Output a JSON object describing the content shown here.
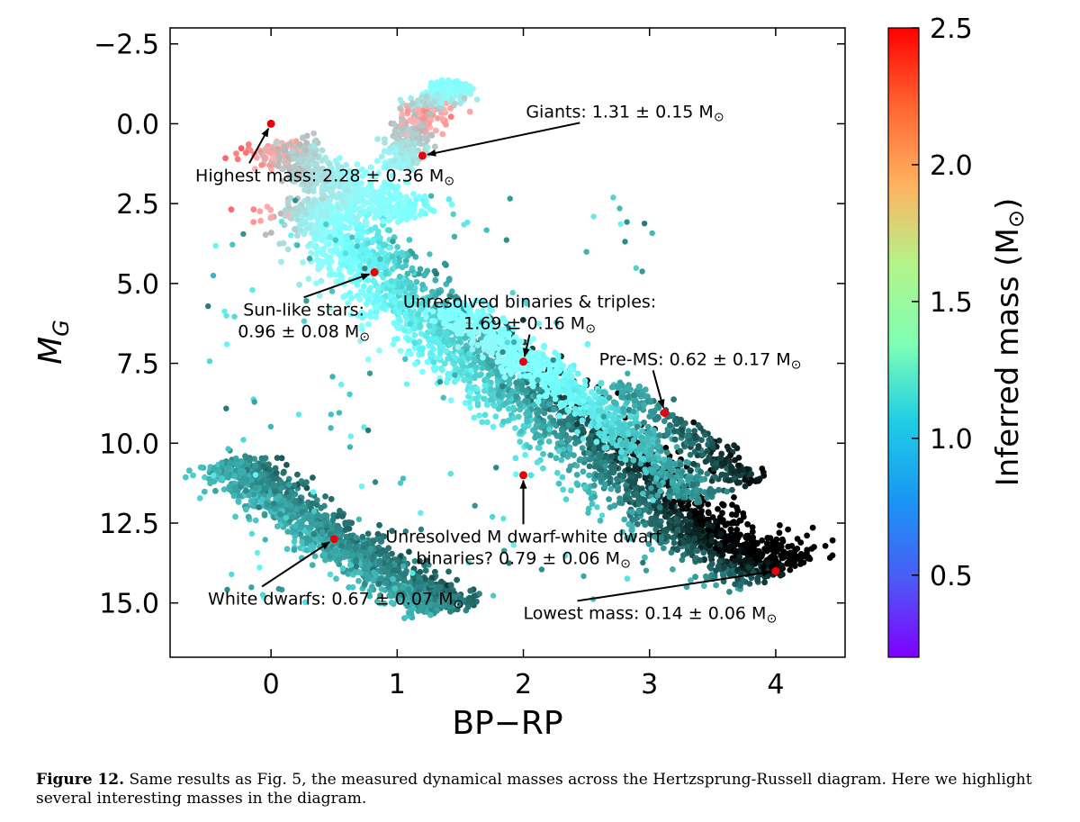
{
  "chart_data": {
    "type": "scatter",
    "xlabel": "BP−RP",
    "ylabel": "M",
    "ylabel_sub": "G",
    "xlim": [
      -0.8,
      4.55
    ],
    "ylim": [
      16.7,
      -3.0
    ],
    "y_inverted": true,
    "xticks": [
      0,
      1,
      2,
      3,
      4
    ],
    "xtick_labels": [
      "0",
      "1",
      "2",
      "3",
      "4"
    ],
    "yticks": [
      -2.5,
      0.0,
      2.5,
      5.0,
      7.5,
      10.0,
      12.5,
      15.0
    ],
    "ytick_labels": [
      "−2.5",
      "0.0",
      "2.5",
      "5.0",
      "7.5",
      "10.0",
      "12.5",
      "15.0"
    ],
    "colorbar": {
      "label": "Inferred mass (M",
      "label_symbol": "⊙",
      "label_close": ")",
      "colormap": "rainbow",
      "range": [
        0.2,
        2.5
      ],
      "ticks": [
        0.5,
        1.0,
        1.5,
        2.0,
        2.5
      ],
      "tick_labels": [
        "0.5",
        "1.0",
        "1.5",
        "2.0",
        "2.5"
      ]
    },
    "highlighted_points": [
      {
        "bp_rp": 0.0,
        "mg": 0.0,
        "mass": 2.28,
        "err": 0.36,
        "label": "Highest mass: 2.28 ± 0.36 M",
        "text_pos": [
          -0.6,
          1.8
        ]
      },
      {
        "bp_rp": 1.2,
        "mg": 1.0,
        "mass": 1.31,
        "err": 0.15,
        "label": "Giants: 1.31 ± 0.15 M",
        "text_pos": [
          2.02,
          -0.2
        ]
      },
      {
        "bp_rp": 0.82,
        "mg": 4.65,
        "mass": 0.96,
        "err": 0.08,
        "label_lines": [
          "Sun-like stars:",
          "0.96 ± 0.08 M"
        ],
        "text_pos": [
          0.26,
          6.0
        ]
      },
      {
        "bp_rp": 2.0,
        "mg": 7.45,
        "mass": 1.69,
        "err": 0.16,
        "label_lines": [
          "Unresolved binaries & triples:",
          "1.69 ± 0.16 M"
        ],
        "text_pos": [
          2.05,
          5.75
        ]
      },
      {
        "bp_rp": 3.12,
        "mg": 9.05,
        "mass": 0.62,
        "err": 0.17,
        "label": "Pre-MS: 0.62 ± 0.17 M",
        "text_pos": [
          2.6,
          7.55
        ]
      },
      {
        "bp_rp": 2.0,
        "mg": 11.0,
        "mass": 0.79,
        "err": 0.06,
        "label_lines": [
          "Unresolved M dwarf-white dwarf",
          "binaries? 0.79 ± 0.06 M"
        ],
        "text_pos": [
          2.0,
          13.1
        ]
      },
      {
        "bp_rp": 0.5,
        "mg": 13.0,
        "mass": 0.67,
        "err": 0.07,
        "label": "White dwarfs: 0.67 ± 0.07 M",
        "text_pos": [
          -0.5,
          15.05
        ]
      },
      {
        "bp_rp": 4.0,
        "mg": 14.0,
        "mass": 0.14,
        "err": 0.06,
        "label": "Lowest mass: 0.14 ± 0.06 M",
        "text_pos": [
          2.0,
          15.5
        ]
      }
    ],
    "populations": [
      {
        "name": "main sequence",
        "path": [
          [
            0.3,
            2.4,
            1.7
          ],
          [
            0.6,
            3.7,
            1.25
          ],
          [
            0.9,
            5.0,
            1.05
          ],
          [
            1.3,
            6.3,
            0.95
          ],
          [
            1.7,
            7.5,
            0.8
          ],
          [
            2.1,
            8.7,
            0.65
          ],
          [
            2.5,
            10.0,
            0.55
          ],
          [
            2.9,
            11.3,
            0.45
          ],
          [
            3.3,
            12.6,
            0.33
          ],
          [
            3.7,
            13.5,
            0.22
          ],
          [
            4.1,
            14.0,
            0.2
          ]
        ],
        "width_x": 0.42,
        "count": 2800
      },
      {
        "name": "binary sequence",
        "path": [
          [
            1.4,
            5.7,
            1.3
          ],
          [
            1.8,
            6.8,
            1.45
          ],
          [
            2.2,
            7.9,
            1.3
          ],
          [
            2.6,
            9.1,
            1.0
          ],
          [
            3.0,
            10.3,
            0.8
          ],
          [
            3.4,
            11.7,
            0.6
          ]
        ],
        "width_x": 0.22,
        "count": 900
      },
      {
        "name": "turnoff and subgiants",
        "path": [
          [
            0.0,
            0.6,
            2.0
          ],
          [
            0.25,
            1.3,
            1.8
          ],
          [
            0.55,
            1.8,
            1.6
          ],
          [
            0.85,
            2.3,
            1.45
          ],
          [
            1.1,
            2.9,
            1.35
          ]
        ],
        "width_x": 0.28,
        "count": 600
      },
      {
        "name": "giant branch",
        "path": [
          [
            1.0,
            1.3,
            1.55
          ],
          [
            1.1,
            0.5,
            1.8
          ],
          [
            1.2,
            -0.3,
            2.0
          ],
          [
            1.35,
            -0.9,
            1.55
          ],
          [
            1.5,
            -1.2,
            1.4
          ]
        ],
        "width_x": 0.18,
        "count": 450
      },
      {
        "name": "white dwarfs",
        "path": [
          [
            -0.35,
            10.6,
            0.7
          ],
          [
            0.0,
            11.6,
            0.67
          ],
          [
            0.5,
            13.0,
            0.66
          ],
          [
            1.0,
            14.3,
            0.64
          ],
          [
            1.4,
            15.2,
            0.63
          ]
        ],
        "width_x": 0.28,
        "count": 1400
      },
      {
        "name": "pre-main sequence",
        "path": [
          [
            2.7,
            8.2,
            0.8
          ],
          [
            3.1,
            9.2,
            0.6
          ],
          [
            3.5,
            10.4,
            0.4
          ],
          [
            3.8,
            11.3,
            0.3
          ]
        ],
        "width_x": 0.18,
        "count": 260
      }
    ]
  },
  "caption": {
    "label": "Figure 12.",
    "text": "Same results as Fig. 5, the measured dynamical masses across the Hertzsprung-Russell diagram. Here we highlight several interesting masses in the diagram."
  }
}
